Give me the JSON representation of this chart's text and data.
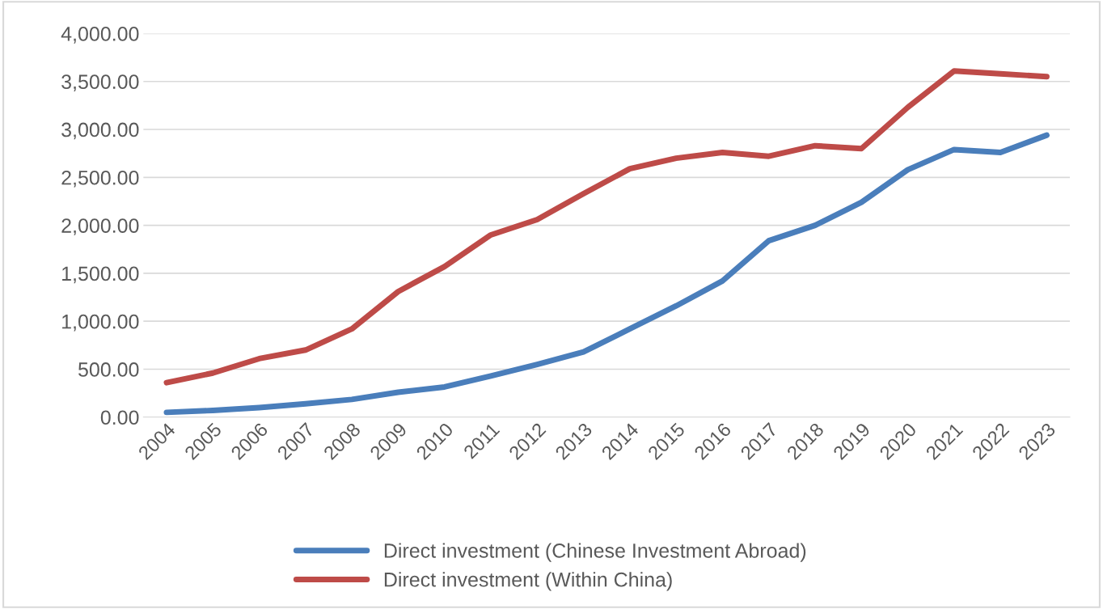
{
  "chart_data": {
    "type": "line",
    "categories": [
      "2004",
      "2005",
      "2006",
      "2007",
      "2008",
      "2009",
      "2010",
      "2011",
      "2012",
      "2013",
      "2014",
      "2015",
      "2016",
      "2017",
      "2018",
      "2019",
      "2020",
      "2021",
      "2022",
      "2023"
    ],
    "series": [
      {
        "name": "Direct investment (Chinese Investment Abroad)",
        "color": "#4a7ebb",
        "values": [
          50,
          70,
          100,
          140,
          185,
          260,
          315,
          430,
          550,
          680,
          920,
          1160,
          1420,
          1840,
          2000,
          2240,
          2580,
          2790,
          2760,
          2940
        ]
      },
      {
        "name": "Direct investment (Within China)",
        "color": "#be4b48",
        "values": [
          360,
          460,
          610,
          700,
          920,
          1310,
          1570,
          1900,
          2060,
          2330,
          2590,
          2700,
          2760,
          2720,
          2830,
          2800,
          3230,
          3610,
          3580,
          3550
        ]
      }
    ],
    "ylim": [
      0,
      4000
    ],
    "yticks": [
      {
        "value": 0,
        "label": "0.00"
      },
      {
        "value": 500,
        "label": "500.00"
      },
      {
        "value": 1000,
        "label": "1,000.00"
      },
      {
        "value": 1500,
        "label": "1,500.00"
      },
      {
        "value": 2000,
        "label": "2,000.00"
      },
      {
        "value": 2500,
        "label": "2,500.00"
      },
      {
        "value": 3000,
        "label": "3,000.00"
      },
      {
        "value": 3500,
        "label": "3,500.00"
      },
      {
        "value": 4000,
        "label": "4,000.00"
      }
    ],
    "grid": "y",
    "legend": "bottom",
    "marker": "none",
    "line_style": "solid"
  }
}
